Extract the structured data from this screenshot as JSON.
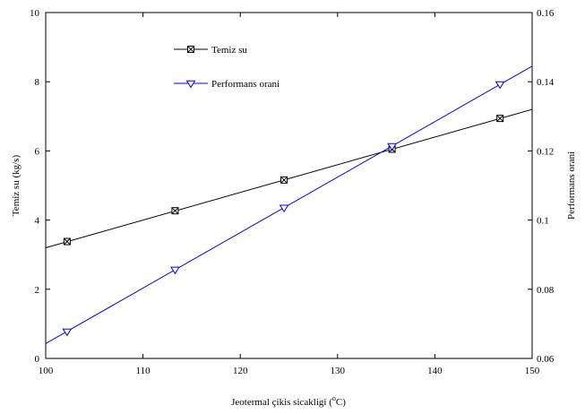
{
  "chart_data": {
    "type": "line",
    "xlabel": "Jeotermal çikis sicakligi (",
    "xlabel_sup": "o",
    "xlabel_suffix": "C)",
    "ylabel_left": "Temiz su (kg/s)",
    "ylabel_right": "Performans orani",
    "xlim": [
      100,
      150
    ],
    "ylim_left": [
      0,
      10
    ],
    "ylim_right": [
      0.06,
      0.16
    ],
    "x_ticks": [
      100,
      110,
      120,
      130,
      140,
      150
    ],
    "y_left_ticks": [
      0,
      2,
      4,
      6,
      8,
      10
    ],
    "y_right_ticks": [
      0.06,
      0.08,
      0.1,
      0.12,
      0.14,
      0.16
    ],
    "grid": false,
    "legend_position": "upper-left inside",
    "series": [
      {
        "name": "Temiz su",
        "axis": "left",
        "color": "#000000",
        "marker": "x-box",
        "line_x": [
          100,
          150
        ],
        "line_y": [
          3.2,
          7.2
        ],
        "marker_x": [
          102.2,
          113.3,
          124.5,
          135.6,
          146.7
        ],
        "marker_y": [
          3.38,
          4.27,
          5.16,
          6.05,
          6.94
        ]
      },
      {
        "name": "Performans orani",
        "axis": "right",
        "color": "#0000ff",
        "marker": "triangle-down",
        "line_x": [
          100,
          150
        ],
        "line_y": [
          0.0643,
          0.1445
        ],
        "marker_x": [
          102.2,
          113.3,
          124.5,
          135.6,
          146.7
        ],
        "marker_y": [
          0.0678,
          0.0857,
          0.1036,
          0.1214,
          0.1393
        ]
      }
    ]
  }
}
